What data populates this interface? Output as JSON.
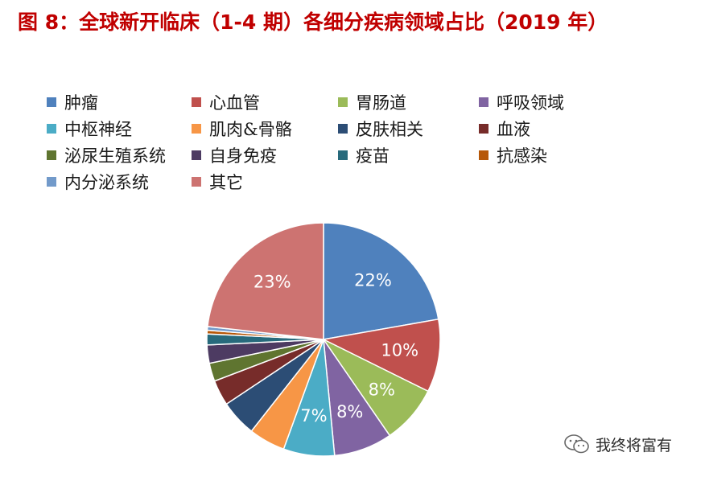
{
  "header": {
    "title": "图 8：全球新开临床（1-4 期）各细分疾病领域占比（2019 年）"
  },
  "watermark": {
    "text": "我终将富有",
    "icon": "wechat-icon"
  },
  "chart_data": {
    "type": "pie",
    "title": "",
    "legend_position": "top",
    "categories": [
      "肿瘤",
      "心血管",
      "胃肠道",
      "呼吸领域",
      "中枢神经",
      "肌肉&骨骼",
      "皮肤相关",
      "血液",
      "泌尿生殖系统",
      "自身免疫",
      "疫苗",
      "抗感染",
      "内分泌系统",
      "其它"
    ],
    "values": [
      22,
      10,
      8,
      8,
      7,
      5,
      5,
      3.5,
      2.5,
      2.5,
      1.5,
      0.5,
      0.5,
      23
    ],
    "data_labels": [
      "22%",
      "10%",
      "8%",
      "8%",
      "7%",
      "",
      "",
      "",
      "",
      "",
      "",
      "",
      "",
      "23%"
    ],
    "colors": [
      "#4f81bd",
      "#c0504d",
      "#9bbb59",
      "#8064a2",
      "#4bacc6",
      "#f79646",
      "#2c4d75",
      "#772c2a",
      "#5f7530",
      "#4d3b62",
      "#276a7c",
      "#b65708",
      "#729aca",
      "#cd7371"
    ]
  }
}
